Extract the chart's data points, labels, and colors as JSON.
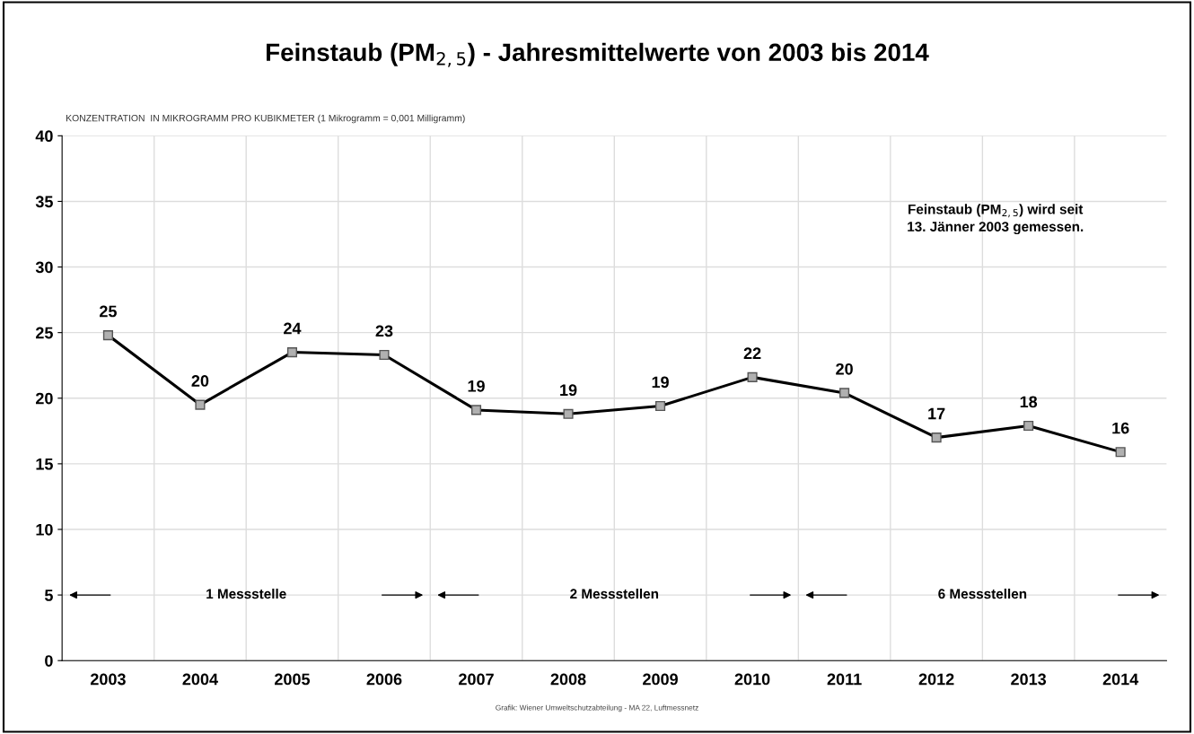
{
  "chart_data": {
    "type": "line",
    "title": "Feinstaub (PM$_{2,5}$) - Jahresmittelwerte von 2003 bis 2014",
    "ylabel": "KONZENTRATION  IN MIKROGRAMM PRO KUBIKMETER (1 Mikrogramm = 0,001 Milligramm)",
    "categories": [
      "2003",
      "2004",
      "2005",
      "2006",
      "2007",
      "2008",
      "2009",
      "2010",
      "2011",
      "2012",
      "2013",
      "2014"
    ],
    "series": [
      {
        "color": "#000000",
        "values": [
          24.8,
          19.5,
          23.5,
          23.3,
          19.1,
          18.8,
          19.4,
          21.6,
          20.4,
          17.0,
          17.9,
          15.9
        ],
        "value_labels": [
          "25",
          "20",
          "24",
          "23",
          "19",
          "19",
          "19",
          "22",
          "20",
          "17",
          "18",
          "16"
        ]
      }
    ],
    "marker": "square",
    "line_style": "solid",
    "ylim": [
      0,
      40
    ],
    "yticks": [
      0,
      5,
      10,
      15,
      20,
      25,
      30,
      35,
      40
    ],
    "grid": true,
    "annotations": [
      "1 Messstelle",
      "2 Messstellen",
      "6 Messstellen",
      "Feinstaub (PM$_{2,5}$) wird seit\n13. Jänner 2003 gemessen.",
      "Grafik: Wiener Umweltschutzabteilung - MA 22, Luftmessnetz"
    ]
  }
}
